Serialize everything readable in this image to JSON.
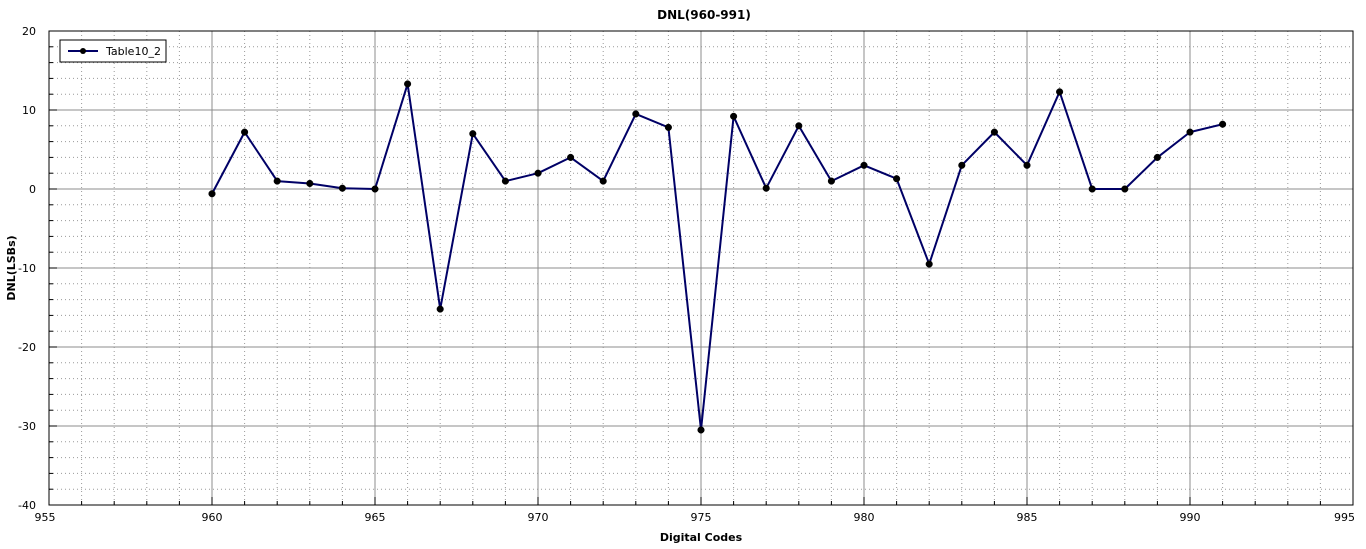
{
  "chart_data": {
    "type": "line",
    "title": "DNL(960-991)",
    "xlabel": "Digital Codes",
    "ylabel": "DNL(LSBs)",
    "xlim": [
      955,
      995
    ],
    "ylim": [
      -40,
      20
    ],
    "x_ticks": [
      955,
      960,
      965,
      970,
      975,
      980,
      985,
      990,
      995
    ],
    "x_tick_labels": [
      "955",
      "960",
      "965",
      "970",
      "975",
      "980",
      "985",
      "990",
      "995"
    ],
    "y_ticks": [
      20,
      10,
      0,
      -10,
      -20,
      -30,
      -40
    ],
    "y_tick_labels": [
      "20",
      "10",
      "0",
      "-10",
      "-20",
      "-30",
      "-40"
    ],
    "x_minor_step": 1,
    "y_minor_step": 2,
    "grid": true,
    "legend": {
      "placement": "top-left",
      "entries": [
        "Table10_2"
      ]
    },
    "series": [
      {
        "name": "Table10_2",
        "color": "#000066",
        "marker": "circle",
        "x": [
          960,
          961,
          962,
          963,
          964,
          965,
          966,
          967,
          968,
          969,
          970,
          971,
          972,
          973,
          974,
          975,
          976,
          977,
          978,
          979,
          980,
          981,
          982,
          983,
          984,
          985,
          986,
          987,
          988,
          989,
          990,
          991
        ],
        "values": [
          -0.6,
          7.2,
          1.0,
          0.7,
          0.1,
          0.0,
          13.3,
          -15.2,
          7.0,
          1.0,
          2.0,
          4.0,
          1.0,
          9.5,
          7.8,
          -30.5,
          9.2,
          0.1,
          8.0,
          1.0,
          3.0,
          1.3,
          -9.5,
          3.0,
          7.2,
          3.0,
          12.3,
          0.0,
          0.0,
          4.0,
          7.2,
          8.2
        ]
      }
    ]
  }
}
